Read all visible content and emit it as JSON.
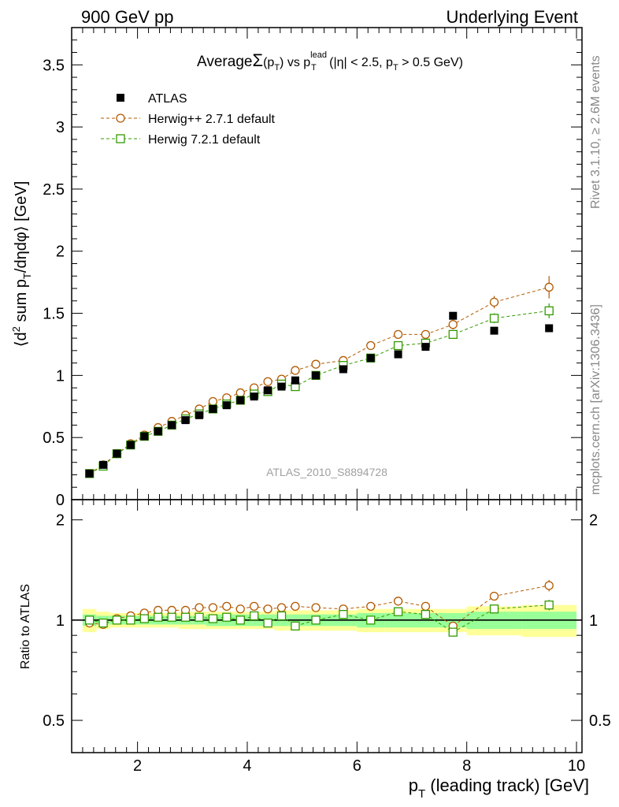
{
  "header": {
    "left": "900 GeV pp",
    "right": "Underlying Event"
  },
  "side_labels": {
    "rivet": "Rivet 3.1.10, ≥ 2.6M events",
    "mcplots": "mcplots.cern.ch [arXiv:1306.3436]"
  },
  "colors": {
    "atlas": "#000000",
    "herwigpp": "#b35900",
    "herwig7": "#339900",
    "band_inner": "#99ff99",
    "band_outer": "#ffff99"
  },
  "chart_data": [
    {
      "type": "scatter",
      "title": "Average Σ(pT) vs pT lead (|η| < 2.5, pT > 0.5 GeV)",
      "title_parts": {
        "average": "Average",
        "sigma": "Σ",
        "sum_arg_open": "(p",
        "sum_arg_sub": "T",
        "sum_arg_close": ")",
        "vs": " vs p",
        "lead_sup": "lead",
        "lead_sub": "T",
        "cuts_1": " (|η| < 2.5, p",
        "cuts_sub": "T",
        "cuts_2": " > 0.5 GeV)"
      },
      "ylabel_parts": {
        "a": "⟨d",
        "sup": "2",
        "b": " sum p",
        "sub": "T",
        "c": "/dηdφ⟩ [GeV]"
      },
      "watermark": "ATLAS_2010_S8894728",
      "xlim": [
        0.8,
        10.1
      ],
      "ylim": [
        0,
        3.8
      ],
      "yticks": [
        0,
        0.5,
        1,
        1.5,
        2,
        2.5,
        3,
        3.5
      ],
      "ytick_labels": [
        "0",
        "0.5",
        "1",
        "1.5",
        "2",
        "2.5",
        "3",
        "3.5"
      ],
      "legend_position": "top-left",
      "x": [
        1.125,
        1.375,
        1.625,
        1.875,
        2.125,
        2.375,
        2.625,
        2.875,
        3.125,
        3.375,
        3.625,
        3.875,
        4.125,
        4.375,
        4.625,
        4.875,
        5.25,
        5.75,
        6.25,
        6.75,
        7.25,
        7.75,
        8.5,
        9.5
      ],
      "series": [
        {
          "name": "ATLAS",
          "marker": "filled-square",
          "values": [
            0.21,
            0.28,
            0.37,
            0.44,
            0.51,
            0.55,
            0.6,
            0.64,
            0.68,
            0.73,
            0.76,
            0.8,
            0.83,
            0.88,
            0.91,
            0.96,
            1.0,
            1.05,
            1.14,
            1.17,
            1.23,
            1.48,
            1.36,
            1.38
          ]
        },
        {
          "name": "Herwig++ 2.7.1 default",
          "marker": "open-circle",
          "values": [
            0.21,
            0.28,
            0.37,
            0.45,
            0.52,
            0.58,
            0.63,
            0.68,
            0.73,
            0.79,
            0.82,
            0.86,
            0.9,
            0.95,
            0.97,
            1.04,
            1.09,
            1.12,
            1.24,
            1.33,
            1.33,
            1.41,
            1.59,
            1.71
          ],
          "errors": [
            0,
            0,
            0,
            0,
            0,
            0,
            0,
            0,
            0,
            0,
            0,
            0,
            0,
            0,
            0,
            0,
            0,
            0,
            0,
            0.02,
            0.03,
            0.04,
            0.05,
            0.09
          ]
        },
        {
          "name": "Herwig 7.2.1 default",
          "marker": "open-square",
          "values": [
            0.21,
            0.27,
            0.37,
            0.44,
            0.51,
            0.55,
            0.6,
            0.65,
            0.69,
            0.73,
            0.77,
            0.8,
            0.85,
            0.87,
            0.93,
            0.91,
            1.0,
            1.08,
            1.14,
            1.24,
            1.26,
            1.33,
            1.46,
            1.52
          ],
          "errors": [
            0,
            0,
            0,
            0,
            0,
            0,
            0,
            0,
            0,
            0,
            0,
            0,
            0,
            0,
            0,
            0,
            0,
            0,
            0,
            0.02,
            0.02,
            0.03,
            0.04,
            0.06
          ]
        }
      ]
    },
    {
      "type": "scatter",
      "title": "",
      "ylabel": "Ratio to ATLAS",
      "xlabel_parts": {
        "a": "p",
        "sub": "T",
        "b": " (leading track) [GeV]"
      },
      "xlim": [
        0.8,
        10.1
      ],
      "ylim": [
        0.4,
        2.3
      ],
      "xticks": [
        2,
        4,
        6,
        8,
        10
      ],
      "xtick_labels": [
        "2",
        "4",
        "6",
        "8",
        "10"
      ],
      "yticks": [
        0.5,
        1,
        2
      ],
      "ytick_labels": [
        "0.5",
        "1",
        "2"
      ],
      "reference_line": 1,
      "x": [
        1.125,
        1.375,
        1.625,
        1.875,
        2.125,
        2.375,
        2.625,
        2.875,
        3.125,
        3.375,
        3.625,
        3.875,
        4.125,
        4.375,
        4.625,
        4.875,
        5.25,
        5.75,
        6.25,
        6.75,
        7.25,
        7.75,
        8.5,
        9.5
      ],
      "bin_edges": [
        1.0,
        1.25,
        1.5,
        1.75,
        2.0,
        2.25,
        2.5,
        2.75,
        3.0,
        3.25,
        3.5,
        3.75,
        4.0,
        4.25,
        4.5,
        4.75,
        5.0,
        5.5,
        6.0,
        6.5,
        7.0,
        7.5,
        8.0,
        9.0,
        10.0
      ],
      "band_inner_halfwidth": [
        0.04,
        0.03,
        0.03,
        0.03,
        0.03,
        0.03,
        0.03,
        0.03,
        0.03,
        0.04,
        0.04,
        0.04,
        0.04,
        0.04,
        0.04,
        0.04,
        0.04,
        0.04,
        0.05,
        0.05,
        0.05,
        0.05,
        0.06,
        0.06
      ],
      "band_outer_halfwidth": [
        0.08,
        0.06,
        0.05,
        0.05,
        0.05,
        0.05,
        0.05,
        0.06,
        0.06,
        0.06,
        0.06,
        0.06,
        0.06,
        0.06,
        0.07,
        0.07,
        0.07,
        0.07,
        0.08,
        0.08,
        0.08,
        0.08,
        0.1,
        0.11
      ],
      "series": [
        {
          "name": "Herwig++ 2.7.1 default",
          "marker": "open-circle",
          "values": [
            0.98,
            0.97,
            1.01,
            1.03,
            1.05,
            1.07,
            1.07,
            1.07,
            1.09,
            1.09,
            1.1,
            1.08,
            1.1,
            1.08,
            1.09,
            1.1,
            1.09,
            1.08,
            1.1,
            1.14,
            1.1,
            0.96,
            1.18,
            1.27
          ],
          "errors": [
            0,
            0,
            0,
            0,
            0,
            0,
            0,
            0,
            0,
            0,
            0,
            0,
            0,
            0,
            0,
            0,
            0,
            0,
            0,
            0.02,
            0.02,
            0.02,
            0.03,
            0.05
          ]
        },
        {
          "name": "Herwig 7.2.1 default",
          "marker": "open-square",
          "values": [
            1.0,
            0.98,
            1.0,
            1.0,
            1.01,
            1.02,
            1.02,
            1.02,
            1.02,
            1.01,
            1.02,
            1.0,
            1.03,
            0.98,
            1.03,
            0.96,
            1.0,
            1.04,
            1.0,
            1.06,
            1.04,
            0.92,
            1.08,
            1.11
          ],
          "errors": [
            0,
            0,
            0,
            0,
            0,
            0,
            0,
            0,
            0,
            0,
            0,
            0,
            0,
            0,
            0,
            0,
            0,
            0,
            0,
            0.02,
            0.02,
            0.02,
            0.03,
            0.04
          ]
        }
      ]
    }
  ]
}
